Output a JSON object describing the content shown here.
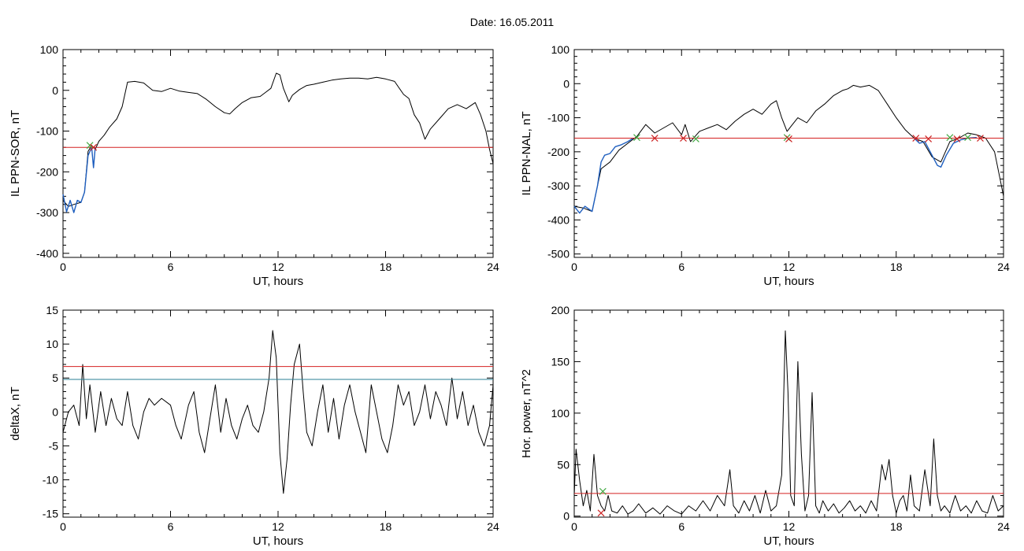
{
  "title": "Date:  16.05.2011",
  "colors": {
    "trace": "#000000",
    "segment": "#1f5fbf",
    "threshold_red": "#d42020",
    "threshold_teal": "#2a7f96",
    "marker_green": "#44aa44",
    "marker_red": "#cc2222"
  },
  "chart_data": [
    {
      "id": "p1",
      "type": "line",
      "xlabel": "UT, hours",
      "ylabel": "IL PPN-SOR, nT",
      "xlim": [
        0,
        24
      ],
      "ylim": [
        -410,
        100
      ],
      "xticks": [
        0,
        6,
        12,
        18,
        24
      ],
      "yticks": [
        100,
        0,
        -100,
        -200,
        -300,
        -400
      ],
      "series": [
        {
          "color": "black",
          "x": [
            0,
            0.3,
            0.6,
            1,
            1.2,
            1.4,
            1.6,
            1.8,
            2,
            2.3,
            2.6,
            3,
            3.3,
            3.6,
            4,
            4.5,
            5,
            5.5,
            6,
            6.5,
            7,
            7.5,
            8,
            8.5,
            9,
            9.3,
            9.6,
            10,
            10.5,
            11,
            11.3,
            11.6,
            11.9,
            12.1,
            12.3,
            12.6,
            12.8,
            13.2,
            13.6,
            14,
            14.5,
            15,
            15.5,
            16,
            16.5,
            17,
            17.5,
            18,
            18.5,
            19,
            19.3,
            19.6,
            19.9,
            20.2,
            20.5,
            21,
            21.5,
            22,
            22.5,
            23,
            23.3,
            23.6,
            23.8,
            24
          ],
          "y": [
            -270,
            -285,
            -280,
            -275,
            -250,
            -150,
            -135,
            -145,
            -125,
            -110,
            -90,
            -70,
            -40,
            20,
            22,
            18,
            0,
            -3,
            5,
            -2,
            -5,
            -8,
            -22,
            -40,
            -55,
            -58,
            -45,
            -30,
            -18,
            -15,
            -5,
            5,
            42,
            38,
            5,
            -28,
            -12,
            2,
            12,
            15,
            20,
            25,
            28,
            30,
            30,
            28,
            32,
            28,
            22,
            -10,
            -20,
            -60,
            -80,
            -120,
            -95,
            -70,
            -45,
            -35,
            -45,
            -30,
            -60,
            -100,
            -145,
            -180
          ]
        },
        {
          "color": "blue",
          "x": [
            0,
            0.2,
            0.4,
            0.6,
            0.8,
            1,
            1.2,
            1.4,
            1.6,
            1.7,
            1.8
          ],
          "y": [
            -255,
            -298,
            -270,
            -300,
            -270,
            -275,
            -250,
            -160,
            -140,
            -190,
            -140
          ]
        },
        {
          "color": "red",
          "x": [
            0,
            24
          ],
          "y": [
            -140,
            -140
          ]
        }
      ],
      "markers": [
        {
          "x": 1.5,
          "y": -135,
          "color": "green"
        },
        {
          "x": 1.7,
          "y": -140,
          "color": "red"
        }
      ]
    },
    {
      "id": "p2",
      "type": "line",
      "xlabel": "UT, hours",
      "ylabel": "IL PPN-NAL, nT",
      "xlim": [
        0,
        24
      ],
      "ylim": [
        -510,
        100
      ],
      "xticks": [
        0,
        6,
        12,
        18,
        24
      ],
      "yticks": [
        100,
        0,
        -100,
        -200,
        -300,
        -400,
        -500
      ],
      "series": [
        {
          "color": "black",
          "x": [
            0,
            0.5,
            1,
            1.5,
            2,
            2.5,
            3,
            3.5,
            4,
            4.5,
            5,
            5.5,
            6,
            6.2,
            6.5,
            7,
            7.5,
            8,
            8.5,
            9,
            9.5,
            10,
            10.5,
            11,
            11.3,
            11.6,
            11.9,
            12.2,
            12.5,
            13,
            13.5,
            14,
            14.5,
            15,
            15.3,
            15.6,
            16,
            16.5,
            17,
            17.5,
            18,
            18.5,
            19,
            19.5,
            20,
            20.5,
            21,
            21.5,
            22,
            22.5,
            23,
            23.5,
            24
          ],
          "y": [
            -360,
            -365,
            -375,
            -250,
            -230,
            -195,
            -175,
            -155,
            -120,
            -145,
            -130,
            -115,
            -150,
            -120,
            -170,
            -140,
            -130,
            -120,
            -135,
            -110,
            -90,
            -75,
            -90,
            -60,
            -50,
            -100,
            -140,
            -120,
            -100,
            -115,
            -80,
            -60,
            -35,
            -20,
            -15,
            -5,
            -10,
            -5,
            -20,
            -60,
            -100,
            -135,
            -160,
            -170,
            -215,
            -230,
            -170,
            -160,
            -145,
            -150,
            -160,
            -200,
            -330
          ]
        },
        {
          "color": "blue",
          "x": [
            0,
            0.3,
            0.6,
            1,
            1.3,
            1.5,
            1.7,
            2,
            2.3,
            2.6,
            3,
            3.3
          ],
          "y": [
            -360,
            -380,
            -360,
            -375,
            -300,
            -230,
            -210,
            -205,
            -185,
            -180,
            -170,
            -160
          ]
        },
        {
          "color": "blue",
          "x": [
            19,
            19.3,
            19.6,
            20,
            20.3,
            20.5,
            20.8,
            21.2,
            21.6,
            22,
            22.5
          ],
          "y": [
            -160,
            -175,
            -170,
            -210,
            -240,
            -245,
            -210,
            -175,
            -165,
            -160,
            -158
          ]
        },
        {
          "color": "red",
          "x": [
            0,
            24
          ],
          "y": [
            -160,
            -160
          ]
        }
      ],
      "markers": [
        {
          "x": 3.5,
          "y": -158,
          "color": "green"
        },
        {
          "x": 4.5,
          "y": -160,
          "color": "red"
        },
        {
          "x": 6.1,
          "y": -160,
          "color": "red"
        },
        {
          "x": 6.8,
          "y": -162,
          "color": "green"
        },
        {
          "x": 11.9,
          "y": -158,
          "color": "green"
        },
        {
          "x": 12.0,
          "y": -162,
          "color": "red"
        },
        {
          "x": 19.1,
          "y": -160,
          "color": "red"
        },
        {
          "x": 19.8,
          "y": -162,
          "color": "red"
        },
        {
          "x": 21.0,
          "y": -158,
          "color": "green"
        },
        {
          "x": 21.4,
          "y": -162,
          "color": "red"
        },
        {
          "x": 22.0,
          "y": -158,
          "color": "green"
        },
        {
          "x": 22.7,
          "y": -160,
          "color": "red"
        }
      ]
    },
    {
      "id": "p3",
      "type": "line",
      "xlabel": "UT, hours",
      "ylabel": "deltaX, nT",
      "xlim": [
        0,
        24
      ],
      "ylim": [
        -15.5,
        15
      ],
      "xticks": [
        0,
        6,
        12,
        18,
        24
      ],
      "yticks": [
        15,
        10,
        5,
        0,
        -5,
        -10,
        -15
      ],
      "series": [
        {
          "color": "black",
          "x": [
            0,
            0.3,
            0.6,
            0.9,
            1.1,
            1.3,
            1.5,
            1.8,
            2.1,
            2.4,
            2.7,
            3,
            3.3,
            3.6,
            3.9,
            4.2,
            4.5,
            4.8,
            5.1,
            5.5,
            6,
            6.3,
            6.6,
            7,
            7.3,
            7.6,
            7.9,
            8.2,
            8.5,
            8.8,
            9.1,
            9.4,
            9.7,
            10,
            10.3,
            10.6,
            10.9,
            11.2,
            11.5,
            11.7,
            11.9,
            12.1,
            12.3,
            12.5,
            12.7,
            12.9,
            13.2,
            13.4,
            13.6,
            13.9,
            14.2,
            14.5,
            14.8,
            15.1,
            15.4,
            15.7,
            16,
            16.3,
            16.6,
            16.9,
            17.2,
            17.5,
            17.8,
            18.1,
            18.4,
            18.7,
            19,
            19.3,
            19.6,
            19.9,
            20.2,
            20.5,
            20.8,
            21.1,
            21.4,
            21.7,
            22,
            22.3,
            22.6,
            22.9,
            23.2,
            23.5,
            23.8,
            24
          ],
          "y": [
            -3,
            0,
            1,
            -2,
            7,
            -1,
            4,
            -3,
            3,
            -2,
            2,
            -1,
            -2,
            3,
            -2,
            -4,
            0,
            2,
            1,
            2,
            1,
            -2,
            -4,
            1,
            3,
            -3,
            -6,
            -1,
            4,
            -3,
            2,
            -2,
            -4,
            -1,
            1,
            -2,
            -3,
            0,
            5,
            12,
            8,
            -6,
            -12,
            -7,
            1,
            7,
            10,
            3,
            -3,
            -5,
            0,
            4,
            -3,
            2,
            -4,
            1,
            4,
            0,
            -3,
            -6,
            4,
            0,
            -4,
            -6,
            -2,
            4,
            1,
            3,
            -2,
            0,
            4,
            -1,
            3,
            1,
            -2,
            5,
            -1,
            3,
            -2,
            1,
            -3,
            -5,
            -2,
            4
          ]
        },
        {
          "color": "red",
          "x": [
            0,
            24
          ],
          "y": [
            6.7,
            6.7
          ]
        },
        {
          "color": "teal",
          "x": [
            0,
            24
          ],
          "y": [
            4.8,
            4.8
          ]
        }
      ],
      "markers": []
    },
    {
      "id": "p4",
      "type": "line",
      "xlabel": "UT, hours",
      "ylabel": "Hor. power, nT^2",
      "xlim": [
        0,
        24
      ],
      "ylim": [
        -1,
        200
      ],
      "xticks": [
        0,
        6,
        12,
        18,
        24
      ],
      "yticks": [
        200,
        150,
        100,
        50,
        0
      ],
      "series": [
        {
          "color": "black",
          "x": [
            0,
            0.1,
            0.3,
            0.5,
            0.7,
            0.9,
            1.1,
            1.3,
            1.5,
            1.7,
            1.9,
            2.1,
            2.4,
            2.7,
            3,
            3.3,
            3.6,
            4,
            4.4,
            4.8,
            5.2,
            5.6,
            6,
            6.4,
            6.8,
            7.2,
            7.6,
            8,
            8.4,
            8.7,
            8.9,
            9.2,
            9.5,
            9.8,
            10.1,
            10.4,
            10.7,
            11,
            11.3,
            11.6,
            11.8,
            11.95,
            12.1,
            12.3,
            12.5,
            12.7,
            12.9,
            13.1,
            13.3,
            13.5,
            13.7,
            13.9,
            14.2,
            14.5,
            14.8,
            15.1,
            15.4,
            15.7,
            16,
            16.3,
            16.6,
            16.9,
            17.2,
            17.4,
            17.6,
            17.8,
            18,
            18.2,
            18.4,
            18.6,
            18.8,
            19,
            19.3,
            19.6,
            19.9,
            20.1,
            20.3,
            20.5,
            20.7,
            21,
            21.3,
            21.6,
            21.9,
            22.2,
            22.5,
            22.8,
            23.1,
            23.4,
            23.7,
            24
          ],
          "y": [
            20,
            65,
            35,
            10,
            25,
            5,
            60,
            20,
            10,
            5,
            20,
            5,
            3,
            10,
            2,
            5,
            12,
            3,
            8,
            2,
            10,
            5,
            2,
            10,
            5,
            15,
            5,
            20,
            10,
            45,
            10,
            3,
            15,
            5,
            20,
            3,
            25,
            5,
            10,
            40,
            180,
            120,
            20,
            10,
            150,
            60,
            5,
            20,
            120,
            10,
            3,
            15,
            5,
            12,
            3,
            8,
            15,
            5,
            10,
            3,
            15,
            5,
            50,
            35,
            55,
            20,
            3,
            15,
            20,
            5,
            40,
            10,
            5,
            45,
            10,
            75,
            20,
            5,
            10,
            3,
            20,
            5,
            10,
            3,
            15,
            5,
            3,
            20,
            5,
            10
          ]
        },
        {
          "color": "red",
          "x": [
            0,
            24
          ],
          "y": [
            22,
            22
          ]
        }
      ],
      "markers": [
        {
          "x": 1.6,
          "y": 24,
          "color": "green"
        },
        {
          "x": 1.5,
          "y": 3,
          "color": "red"
        }
      ]
    }
  ]
}
